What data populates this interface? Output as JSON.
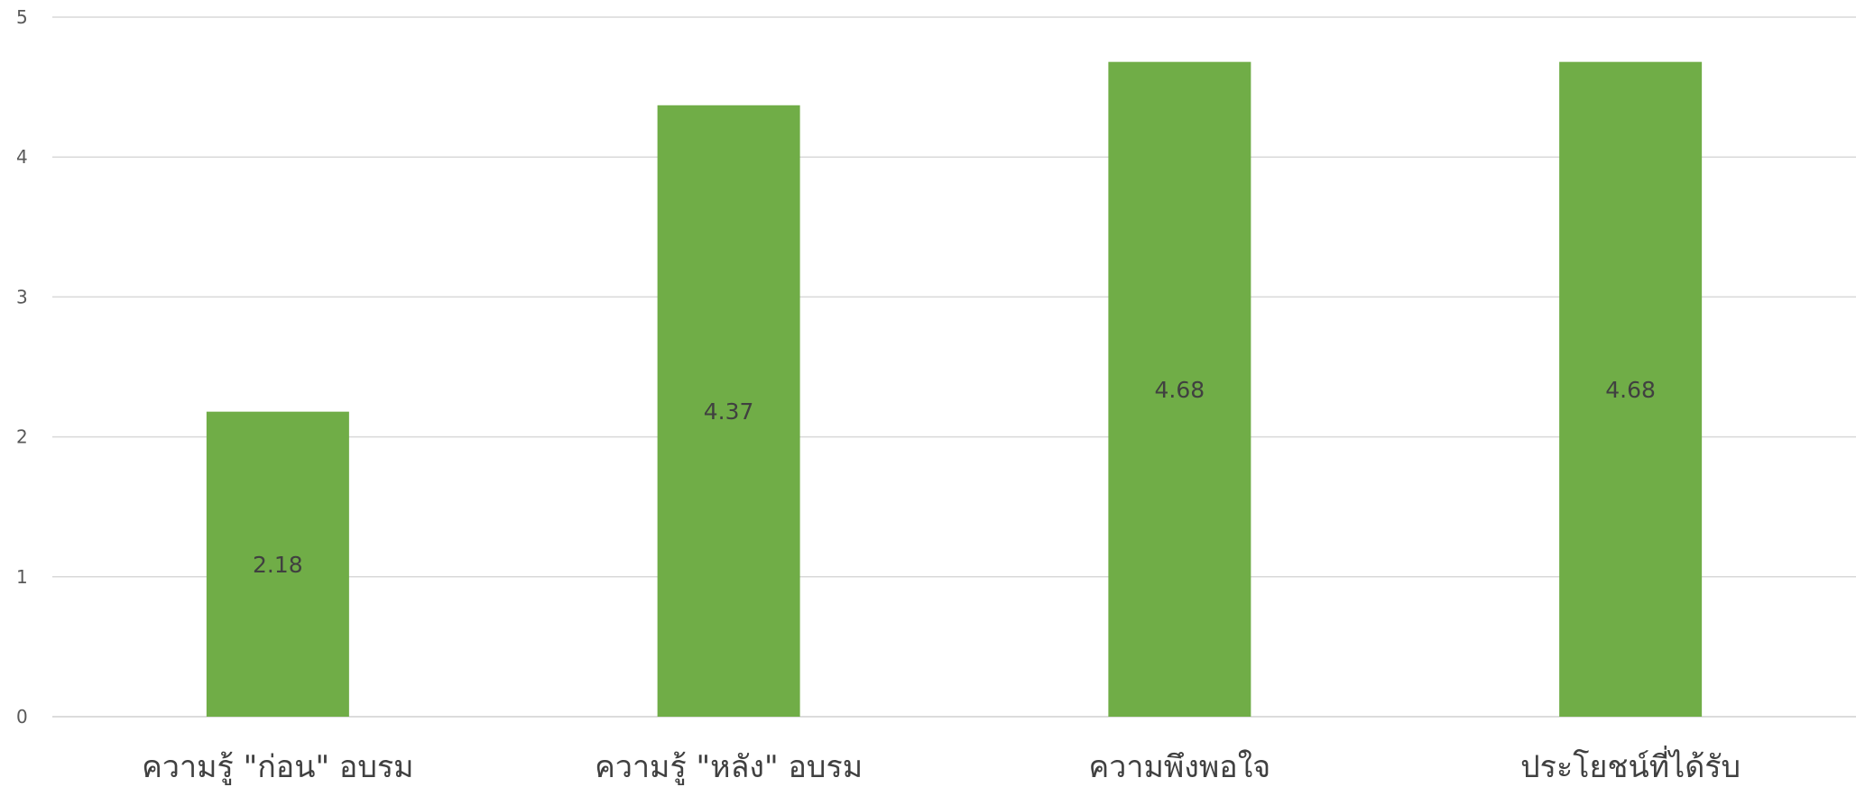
{
  "chart_data": {
    "type": "bar",
    "categories": [
      "ความรู้ \"ก่อน\" อบรม",
      "ความรู้ \"หลัง\" อบรม",
      "ความพึงพอใจ",
      "ประโยชน์ที่ได้รับ"
    ],
    "values": [
      2.18,
      4.37,
      4.68,
      4.68
    ],
    "data_labels": [
      "2.18",
      "4.37",
      "4.68",
      "4.68"
    ],
    "ylim": [
      0,
      5
    ],
    "yticks": [
      "0",
      "1",
      "2",
      "3",
      "4",
      "5"
    ],
    "grid": true,
    "bar_color": "#70ad47",
    "title": "",
    "xlabel": "",
    "ylabel": ""
  }
}
